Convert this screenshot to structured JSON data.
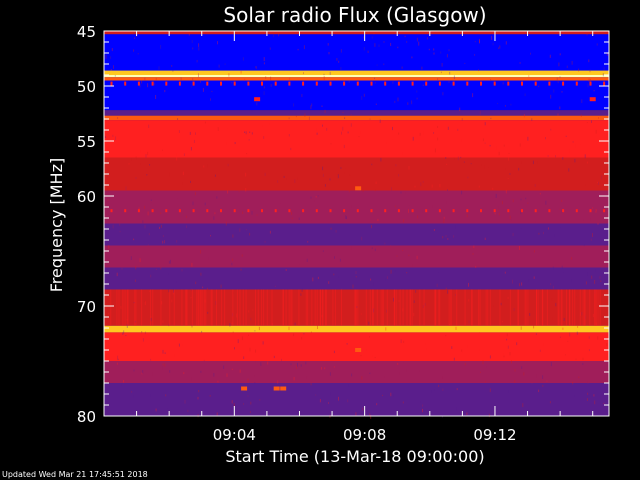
{
  "colors": {
    "background": "#000000",
    "axis": "#ffffff",
    "palette": [
      "#0a0a30",
      "#1e1e8c",
      "#0000ff",
      "#5a1e8c",
      "#a01e5a",
      "#d21e1e",
      "#ff2020",
      "#ff5a10",
      "#ffc820",
      "#ffffb4"
    ]
  },
  "footer": {
    "updated": "Updated Wed Mar 21 17:45:51 2018"
  },
  "chart_data": {
    "type": "heatmap",
    "title": "Solar radio Flux (Glasgow)",
    "xlabel": "Start Time (13-Mar-18 09:00:00)",
    "ylabel": "Frequency [MHz]",
    "xlim": [
      0,
      15.5
    ],
    "ylim": [
      80,
      45
    ],
    "x_unit": "minutes after 09:00:00",
    "x_ticks": [
      {
        "value": 4,
        "label": "09:04"
      },
      {
        "value": 8,
        "label": "09:08"
      },
      {
        "value": 12,
        "label": "09:12"
      }
    ],
    "y_ticks": [
      {
        "value": 45,
        "label": "45"
      },
      {
        "value": 50,
        "label": "50"
      },
      {
        "value": 55,
        "label": "55"
      },
      {
        "value": 60,
        "label": "60"
      },
      {
        "value": 70,
        "label": "70"
      },
      {
        "value": 80,
        "label": "80"
      }
    ],
    "y_minor_ticks": [
      46,
      47,
      48,
      49,
      51,
      52,
      53,
      54,
      56,
      57,
      58,
      59,
      61,
      62,
      63,
      64,
      65,
      66,
      67,
      68,
      69,
      71,
      72,
      73,
      74,
      75,
      76,
      77,
      78,
      79
    ],
    "x_minor_ticks": [
      1,
      2,
      3,
      5,
      6,
      7,
      9,
      10,
      11,
      13,
      14,
      15
    ],
    "frequency_bands": [
      {
        "from": 45.0,
        "to": 45.3,
        "level": 5
      },
      {
        "from": 45.3,
        "to": 48.6,
        "level": 2
      },
      {
        "from": 48.6,
        "to": 49.0,
        "level": 8
      },
      {
        "from": 49.0,
        "to": 49.2,
        "level": 9
      },
      {
        "from": 49.2,
        "to": 49.5,
        "level": 7
      },
      {
        "from": 49.5,
        "to": 52.2,
        "level": 2
      },
      {
        "from": 52.2,
        "to": 52.7,
        "level": 3
      },
      {
        "from": 52.7,
        "to": 53.1,
        "level": 7
      },
      {
        "from": 53.1,
        "to": 56.5,
        "level": 6
      },
      {
        "from": 56.5,
        "to": 59.5,
        "level": 5
      },
      {
        "from": 59.5,
        "to": 62.5,
        "level": 4
      },
      {
        "from": 62.5,
        "to": 64.5,
        "level": 3
      },
      {
        "from": 64.5,
        "to": 66.5,
        "level": 4
      },
      {
        "from": 66.5,
        "to": 68.5,
        "level": 3
      },
      {
        "from": 68.5,
        "to": 71.8,
        "level": 5
      },
      {
        "from": 71.8,
        "to": 72.4,
        "level": 8
      },
      {
        "from": 72.4,
        "to": 75.0,
        "level": 6
      },
      {
        "from": 75.0,
        "to": 77.0,
        "level": 4
      },
      {
        "from": 77.0,
        "to": 80.0,
        "level": 3
      }
    ],
    "hotspots": [
      {
        "time": 7.8,
        "freq": 59.3,
        "level": 7
      },
      {
        "time": 7.8,
        "freq": 74.0,
        "level": 7
      },
      {
        "time": 4.3,
        "freq": 77.5,
        "level": 7
      },
      {
        "time": 5.3,
        "freq": 77.5,
        "level": 7
      },
      {
        "time": 5.5,
        "freq": 77.5,
        "level": 7
      },
      {
        "time": 4.7,
        "freq": 51.2,
        "level": 6
      },
      {
        "time": 15.0,
        "freq": 51.2,
        "level": 6
      }
    ]
  }
}
